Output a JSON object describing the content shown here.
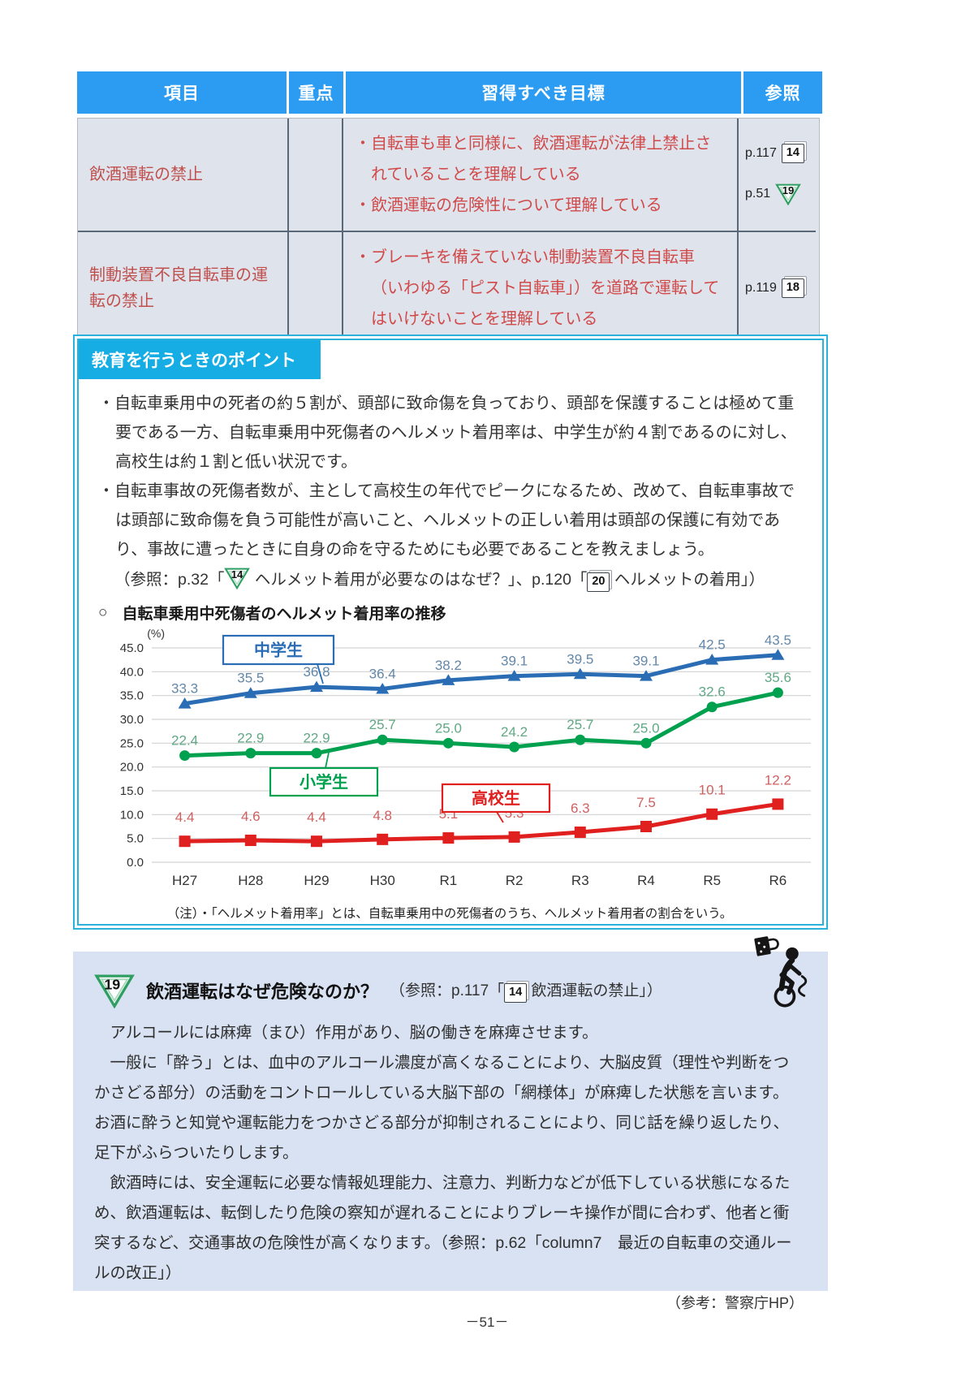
{
  "table": {
    "headers": [
      "項目",
      "重点",
      "習得すべき目標",
      "参照"
    ],
    "rows": [
      {
        "item": "飲酒運転の禁止",
        "priority": "",
        "goals": [
          "・自転車も車と同様に、飲酒運転が法律上禁止されていることを理解している",
          "・飲酒運転の危険性について理解している"
        ],
        "refs": [
          {
            "page": "p.117",
            "icon": "page",
            "num": "14"
          },
          {
            "page": "p.51",
            "icon": "triangle",
            "num": "19"
          }
        ]
      },
      {
        "item": "制動装置不良自転車の運転の禁止",
        "priority": "",
        "goals": [
          "・ブレーキを備えていない制動装置不良自転車（いわゆる「ピスト自転車」）を道路で運転してはいけないことを理解している"
        ],
        "refs": [
          {
            "page": "p.119",
            "icon": "page",
            "num": "18"
          }
        ]
      }
    ]
  },
  "points": {
    "title": "教育を行うときのポイント",
    "bullets": [
      "・自転車乗用中の死者の約５割が、頭部に致命傷を負っており、頭部を保護することは極めて重要である一方、自転車乗用中死傷者のヘルメット着用率は、中学生が約４割であるのに対し、高校生は約１割と低い状況です。",
      "・自転車事故の死傷者数が、主として高校生の年代でピークになるため、改めて、自転車事故では頭部に致命傷を負う可能性が高いこと、ヘルメットの正しい着用は頭部の保護に有効であり、事故に遭ったときに自身の命を守るためにも必要であることを教えましょう。"
    ],
    "ref_line": {
      "p1": "（参照：p.32「",
      "tri_num": "14",
      "p2": " ヘルメット着用が必要なのはなぜ？」、p.120「",
      "box_num": "20",
      "p3": " ヘルメットの着用」）"
    },
    "chart_marker": "○"
  },
  "chart_data": {
    "type": "line",
    "title": "自転車乗用中死傷者のヘルメット着用率の推移",
    "unit_label": "(%)",
    "categories": [
      "H27",
      "H28",
      "H29",
      "H30",
      "R1",
      "R2",
      "R3",
      "R4",
      "R5",
      "R6"
    ],
    "series": [
      {
        "name": "中学生",
        "color": "#2a6db5",
        "label_color": "#6288a9",
        "marker": "triangle",
        "values": [
          33.3,
          35.5,
          36.8,
          36.4,
          38.2,
          39.1,
          39.5,
          39.1,
          42.5,
          43.5
        ]
      },
      {
        "name": "小学生",
        "color": "#00a14e",
        "label_color": "#61a886",
        "marker": "circle",
        "values": [
          22.4,
          22.9,
          22.9,
          25.7,
          25.0,
          24.2,
          25.7,
          25.0,
          32.6,
          35.6
        ]
      },
      {
        "name": "高校生",
        "color": "#e01f1f",
        "label_color": "#d06060",
        "marker": "square",
        "values": [
          4.4,
          4.6,
          4.4,
          4.8,
          5.1,
          5.3,
          6.3,
          7.5,
          10.1,
          12.2
        ]
      }
    ],
    "ylim": [
      0,
      45
    ],
    "ytick_step": 5,
    "grid": true,
    "legend_position": "callout-boxes",
    "note": "（注）・「ヘルメット着用率」とは、自転車乗用中の死傷者のうち、ヘルメット着用者の割合をいう。"
  },
  "section": {
    "num": "19",
    "title": "飲酒運転はなぜ危険なのか？",
    "title_ref": {
      "p1": "（参照：p.117「",
      "box_num": "14",
      "p2": " 飲酒運転の禁止」）"
    },
    "paragraphs": [
      "アルコールには麻痺（まひ）作用があり、脳の働きを麻痺させます。",
      "一般に「酔う」とは、血中のアルコール濃度が高くなることにより、大脳皮質（理性や判断をつかさどる部分）の活動をコントロールしている大脳下部の「網様体」が麻痺した状態を言います。お酒に酔うと知覚や運転能力をつかさどる部分が抑制されることにより、同じ話を繰り返したり、足下がふらついたりします。",
      "飲酒時には、安全運転に必要な情報処理能力、注意力、判断力などが低下している状態になるため、飲酒運転は、転倒したり危険の察知が遅れることによりブレーキ操作が間に合わず、他者と衝突するなど、交通事故の危険性が高くなります。（参照：p.62「column7　最近の自転車の交通ルールの改正」）"
    ],
    "source": "（参考：警察庁HP）",
    "icon": "drunk-cyclist-icon"
  },
  "footer": {
    "page_number": "－51－"
  }
}
